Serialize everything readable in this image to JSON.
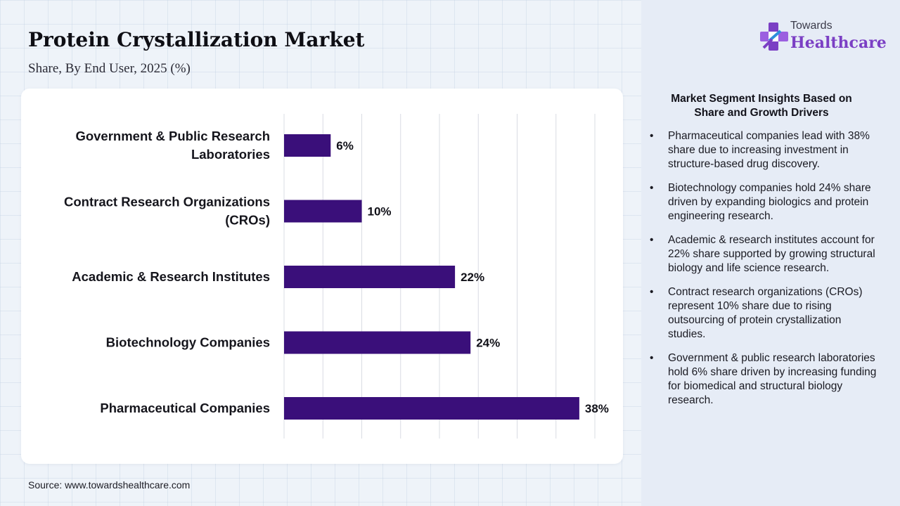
{
  "header": {
    "title": "Protein Crystallization Market",
    "subtitle": "Share, By End User, 2025 (%)"
  },
  "logo": {
    "top_text": "Towards",
    "main_text": "Healthcare",
    "icon": "medical-cross-icon"
  },
  "source": "Source: www.towardshealthcare.com",
  "insights": {
    "title_line1": "Market Segment Insights Based on",
    "title_line2": "Share and Growth Drivers",
    "bullet_glyph": "•",
    "items": [
      "Pharmaceutical companies lead with 38% share due to increasing investment in structure-based drug discovery.",
      "Biotechnology companies hold 24% share driven by expanding biologics and protein engineering research.",
      "Academic & research institutes account for 22% share supported by growing structural biology and life science research.",
      "Contract research organizations (CROs) represent 10% share due to rising outsourcing of protein crystallization studies.",
      "Government & public research laboratories hold 6% share driven by increasing funding for biomedical and structural biology research."
    ]
  },
  "colors": {
    "bar": "#3a0f7a",
    "grid": "#d9dce3",
    "brand": "#7b3fc4",
    "brand_accent": "#2f8fdc"
  },
  "chart_data": {
    "type": "bar",
    "orientation": "horizontal",
    "title": "Protein Crystallization Market",
    "subtitle": "Share, By End User, 2025 (%)",
    "categories": [
      [
        "Government & Public Research",
        "Laboratories"
      ],
      [
        "Contract Research Organizations",
        "(CROs)"
      ],
      [
        "Academic & Research Institutes"
      ],
      [
        "Biotechnology Companies"
      ],
      [
        "Pharmaceutical Companies"
      ]
    ],
    "values": [
      6,
      10,
      22,
      24,
      38
    ],
    "value_labels": [
      "6%",
      "10%",
      "22%",
      "24%",
      "38%"
    ],
    "xlim": [
      0,
      40
    ],
    "grid": true,
    "legend": "none"
  }
}
